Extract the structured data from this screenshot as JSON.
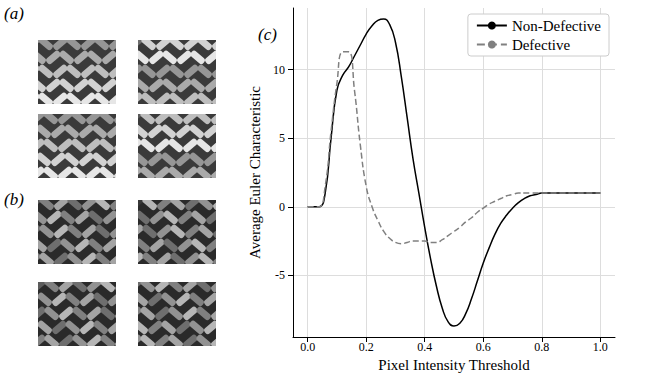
{
  "panels": [
    {
      "label": "(a)"
    },
    {
      "label": "(b)"
    }
  ],
  "chart_data": {
    "type": "line",
    "panel_label": "(c)",
    "x_label": "Pixel Intensity Threshold",
    "y_label": "Average Euler Characteristic",
    "x": [
      0,
      0.02,
      0.04,
      0.06,
      0.08,
      0.1,
      0.12,
      0.14,
      0.16,
      0.18,
      0.2,
      0.22,
      0.24,
      0.26,
      0.28,
      0.3,
      0.32,
      0.34,
      0.36,
      0.38,
      0.4,
      0.42,
      0.44,
      0.46,
      0.48,
      0.5,
      0.52,
      0.54,
      0.56,
      0.58,
      0.6,
      0.62,
      0.64,
      0.66,
      0.68,
      0.7,
      0.72,
      0.74,
      0.76,
      0.78,
      0.8,
      0.82,
      0.84,
      0.86,
      0.88,
      0.9,
      0.92,
      0.94,
      0.96,
      0.98,
      1.0
    ],
    "series": [
      {
        "name": "Non-Defective",
        "color": "#000000",
        "line_style": "solid",
        "values": [
          0,
          0,
          0,
          1,
          5,
          8.5,
          9.6,
          10.2,
          11,
          11.8,
          12.6,
          13.2,
          13.6,
          13.7,
          13.3,
          12,
          9.5,
          6.5,
          3.5,
          1,
          -1.5,
          -3.8,
          -5.8,
          -7.4,
          -8.4,
          -8.7,
          -8.5,
          -7.8,
          -6.7,
          -5.4,
          -4.1,
          -3,
          -2,
          -1.2,
          -0.6,
          -0.1,
          0.3,
          0.6,
          0.8,
          0.9,
          1,
          1,
          1,
          1,
          1,
          1,
          1,
          1,
          1,
          1,
          1
        ]
      },
      {
        "name": "Defective",
        "color": "#808080",
        "line_style": "dashed",
        "values": [
          0,
          0,
          0,
          1.5,
          5.5,
          9,
          11.3,
          11.3,
          8.5,
          4.5,
          1.5,
          0,
          -1,
          -1.8,
          -2.3,
          -2.6,
          -2.7,
          -2.6,
          -2.5,
          -2.5,
          -2.5,
          -2.6,
          -2.6,
          -2.4,
          -2.1,
          -1.8,
          -1.5,
          -1.1,
          -0.8,
          -0.4,
          -0.1,
          0.2,
          0.4,
          0.6,
          0.8,
          0.9,
          1,
          1,
          1,
          1,
          1,
          1,
          1,
          1,
          1,
          1,
          1,
          1,
          1,
          1,
          1
        ]
      }
    ],
    "xlim": [
      -0.05,
      1.05
    ],
    "xticks": [
      {
        "value": 0,
        "label": "0.0"
      },
      0.2,
      0.4,
      0.6,
      0.8,
      {
        "value": 1,
        "label": "1.0"
      }
    ],
    "ylim": [
      -9.5,
      14.5
    ],
    "yticks": [
      -5,
      0,
      5,
      10
    ],
    "grid": true,
    "legend": "upper right"
  }
}
